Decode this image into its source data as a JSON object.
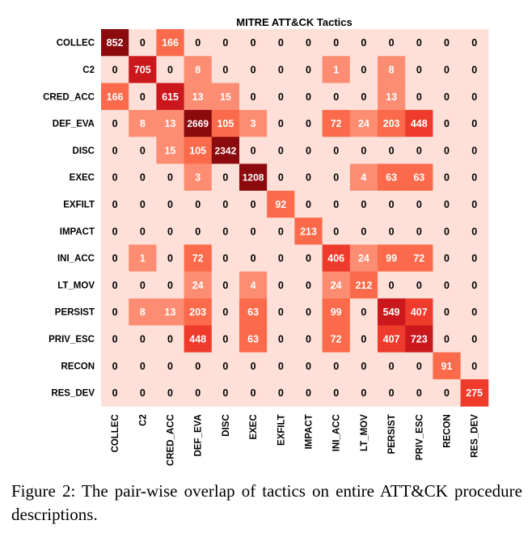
{
  "chart_data": {
    "type": "heatmap",
    "title": "MITRE ATT&CK Tactics",
    "rows": [
      "COLLEC",
      "C2",
      "CRED_ACC",
      "DEF_EVA",
      "DISC",
      "EXEC",
      "EXFILT",
      "IMPACT",
      "INI_ACC",
      "LT_MOV",
      "PERSIST",
      "PRIV_ESC",
      "RECON",
      "RES_DEV"
    ],
    "columns": [
      "COLLEC",
      "C2",
      "CRED_ACC",
      "DEF_EVA",
      "DISC",
      "EXEC",
      "EXFILT",
      "IMPACT",
      "INI_ACC",
      "LT_MOV",
      "PERSIST",
      "PRIV_ESC",
      "RECON",
      "RES_DEV"
    ],
    "values": [
      [
        852,
        0,
        166,
        0,
        0,
        0,
        0,
        0,
        0,
        0,
        0,
        0,
        0,
        0
      ],
      [
        0,
        705,
        0,
        8,
        0,
        0,
        0,
        0,
        1,
        0,
        8,
        0,
        0,
        0
      ],
      [
        166,
        0,
        615,
        13,
        15,
        0,
        0,
        0,
        0,
        0,
        13,
        0,
        0,
        0
      ],
      [
        0,
        8,
        13,
        2669,
        105,
        3,
        0,
        0,
        72,
        24,
        203,
        448,
        0,
        0
      ],
      [
        0,
        0,
        15,
        105,
        2342,
        0,
        0,
        0,
        0,
        0,
        0,
        0,
        0,
        0
      ],
      [
        0,
        0,
        0,
        3,
        0,
        1208,
        0,
        0,
        0,
        4,
        63,
        63,
        0,
        0
      ],
      [
        0,
        0,
        0,
        0,
        0,
        0,
        92,
        0,
        0,
        0,
        0,
        0,
        0,
        0
      ],
      [
        0,
        0,
        0,
        0,
        0,
        0,
        0,
        213,
        0,
        0,
        0,
        0,
        0,
        0
      ],
      [
        0,
        1,
        0,
        72,
        0,
        0,
        0,
        0,
        406,
        24,
        99,
        72,
        0,
        0
      ],
      [
        0,
        0,
        0,
        24,
        0,
        4,
        0,
        0,
        24,
        212,
        0,
        0,
        0,
        0
      ],
      [
        0,
        8,
        13,
        203,
        0,
        63,
        0,
        0,
        99,
        0,
        549,
        407,
        0,
        0
      ],
      [
        0,
        0,
        0,
        448,
        0,
        63,
        0,
        0,
        72,
        0,
        407,
        723,
        0,
        0
      ],
      [
        0,
        0,
        0,
        0,
        0,
        0,
        0,
        0,
        0,
        0,
        0,
        0,
        91,
        0
      ],
      [
        0,
        0,
        0,
        0,
        0,
        0,
        0,
        0,
        0,
        0,
        0,
        0,
        0,
        275
      ]
    ],
    "colors": {
      "zero": "#fee0d8",
      "very_low": "#fc8d73",
      "low": "#fb6a4a",
      "medium": "#ef3b2c",
      "high": "#cb181d",
      "max": "#8b0a0d"
    }
  },
  "caption": "Figure 2: The pair-wise overlap of tactics on entire ATT&CK procedure descriptions."
}
